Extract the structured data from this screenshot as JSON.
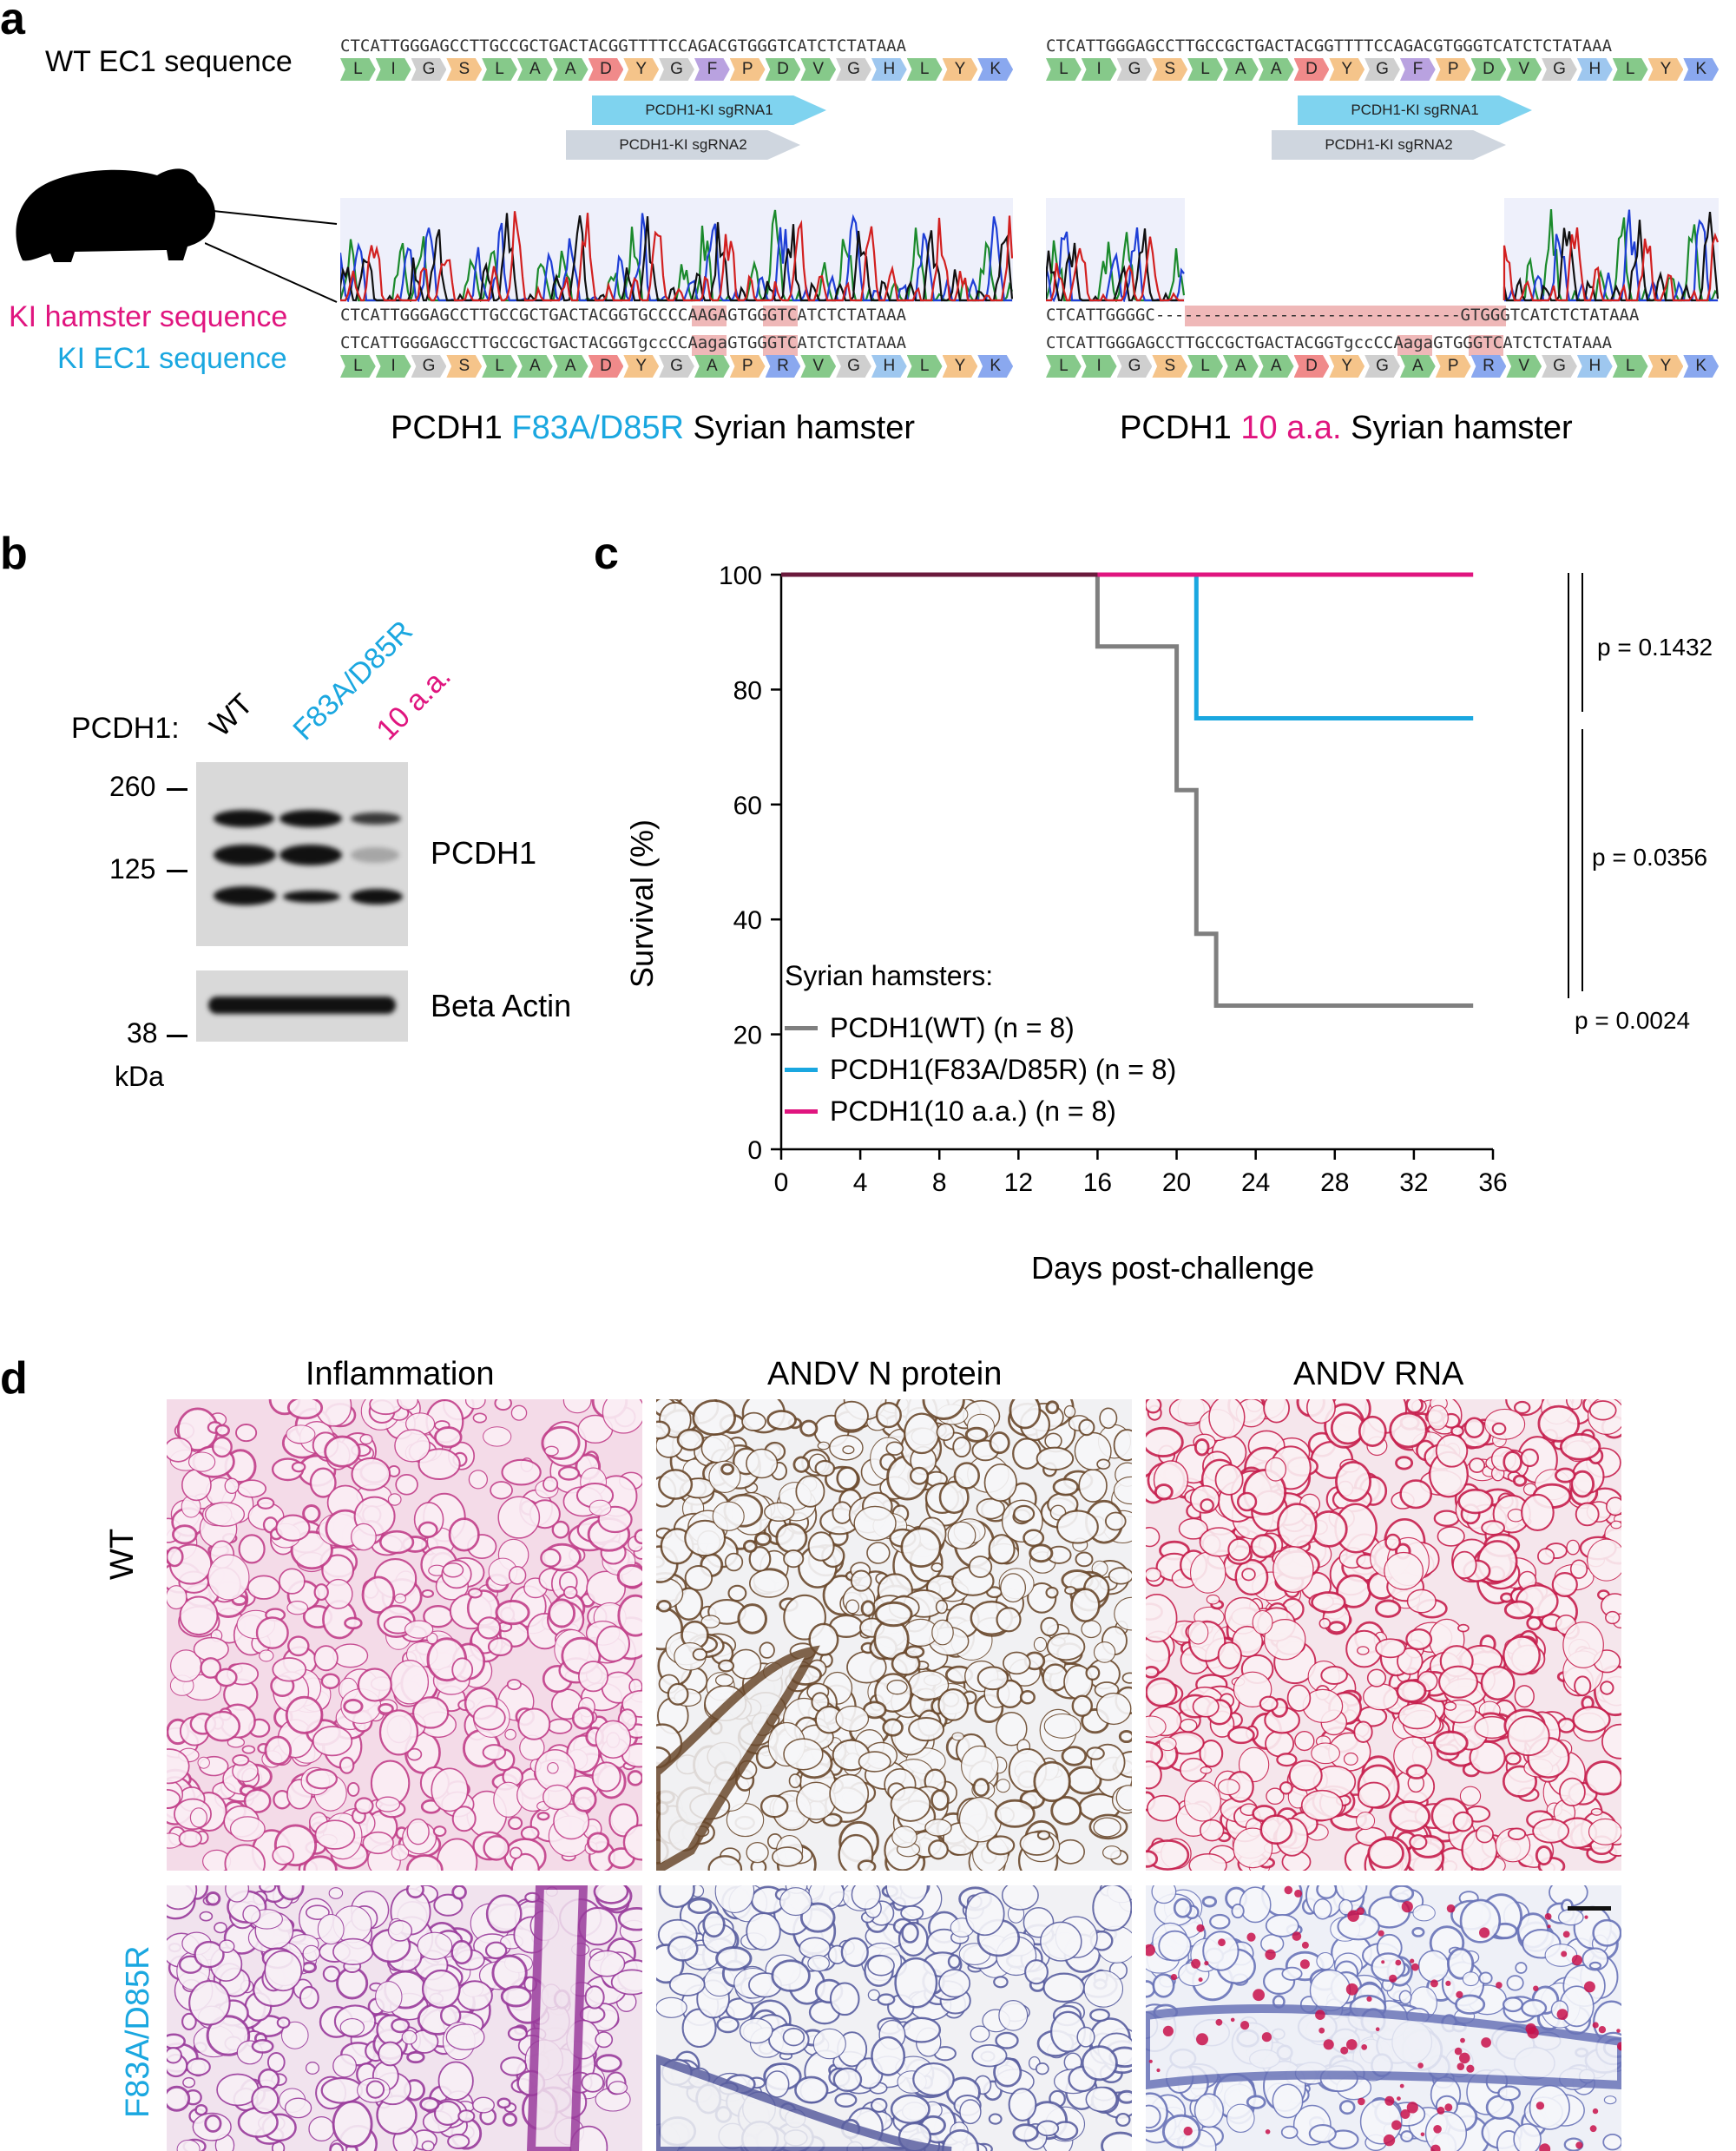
{
  "panel_a": {
    "letter": "a",
    "wt_label": "WT EC1 sequence",
    "ki_hamster_label": "KI hamster sequence",
    "ki_ec1_label": "KI EC1 sequence",
    "wt_dna": "CTCATTGGGAGCCTTGCCGCTGACTACGGTTTTCCAGACGTGGGTCATCTCTATAAA",
    "ki_dna_left": "CTCATTGGGAGCCTTGCCGCTGACTACGGTGCCCCAAGAGTGGGTCATCTCTATAAA",
    "ki_ec1_left": "CTCATTGGGAGCCTTGCCGCTGACTACGGTgccCCAagaGTGGGTCATCTCTATAAA",
    "ki_dna_right_start": "CTCATTGGGGC",
    "ki_dna_right_dashes": "--------------------------------",
    "ki_dna_right_end": "GTGGGTCATCTCTATAAA",
    "ki_ec1_right": "CTCATTGGGAGCCTTGCCGCTGACTACGGTgccCCAagaGTGGGTCATCTCTATAAA",
    "wt_aa": [
      "L",
      "I",
      "G",
      "S",
      "L",
      "A",
      "A",
      "D",
      "Y",
      "G",
      "F",
      "P",
      "D",
      "V",
      "G",
      "H",
      "L",
      "Y",
      "K"
    ],
    "ki_aa": [
      "L",
      "I",
      "G",
      "S",
      "L",
      "A",
      "A",
      "D",
      "Y",
      "G",
      "A",
      "P",
      "R",
      "V",
      "G",
      "H",
      "L",
      "Y",
      "K"
    ],
    "sgrna1": "PCDH1-KI sgRNA1",
    "sgrna2": "PCDH1-KI sgRNA2",
    "title_left_prefix": "PCDH1",
    "title_left_mut": "F83A/D85R",
    "title_left_suffix": "Syrian hamster",
    "title_right_prefix": "PCDH1",
    "title_right_mut": "10 a.a.",
    "title_right_suffix": "Syrian hamster",
    "icon": "hamster-silhouette-icon"
  },
  "panel_b": {
    "letter": "b",
    "pcdh1_label": "PCDH1:",
    "lanes": [
      "WT",
      "F83A/D85R",
      "10 a.a."
    ],
    "markers": [
      "260",
      "125",
      "38"
    ],
    "unit": "kDa",
    "blot1_label": "PCDH1",
    "blot2_label": "Beta Actin"
  },
  "panel_c": {
    "letter": "c",
    "ylabel": "Survival (%)",
    "xlabel": "Days post-challenge",
    "legend_title": "Syrian hamsters:",
    "pvalues": [
      "p = 0.1432",
      "p = 0.0356",
      "p = 0.0024"
    ],
    "colors": {
      "wt": "#7f7f7f",
      "f83a": "#1aa7e0",
      "aa10": "#e0157f",
      "overlap": "#6b1a3c"
    }
  },
  "chart_data": {
    "type": "line",
    "xlabel": "Days post-challenge",
    "ylabel": "Survival (%)",
    "xlim": [
      0,
      36
    ],
    "ylim": [
      0,
      100
    ],
    "xticks": [
      0,
      4,
      8,
      12,
      16,
      20,
      24,
      28,
      32,
      36
    ],
    "yticks": [
      0,
      20,
      40,
      60,
      80,
      100
    ],
    "series": [
      {
        "name": "PCDH1(WT) (n = 8)",
        "color": "#7f7f7f",
        "x": [
          0,
          16,
          16,
          20,
          20,
          21,
          21,
          22,
          22,
          35
        ],
        "y": [
          100,
          100,
          87.5,
          87.5,
          62.5,
          62.5,
          37.5,
          37.5,
          25,
          25
        ]
      },
      {
        "name": "PCDH1(F83A/D85R) (n = 8)",
        "color": "#1aa7e0",
        "x": [
          0,
          21,
          21,
          35
        ],
        "y": [
          100,
          100,
          75,
          75
        ]
      },
      {
        "name": "PCDH1(10 a.a.) (n = 8)",
        "color": "#e0157f",
        "x": [
          0,
          35
        ],
        "y": [
          100,
          100
        ]
      }
    ],
    "legend": "bottom-left"
  },
  "panel_d": {
    "letter": "d",
    "col_titles": [
      "Inflammation",
      "ANDV N protein",
      "ANDV RNA"
    ],
    "row_labels": [
      "WT",
      "F83A/D85R"
    ]
  }
}
